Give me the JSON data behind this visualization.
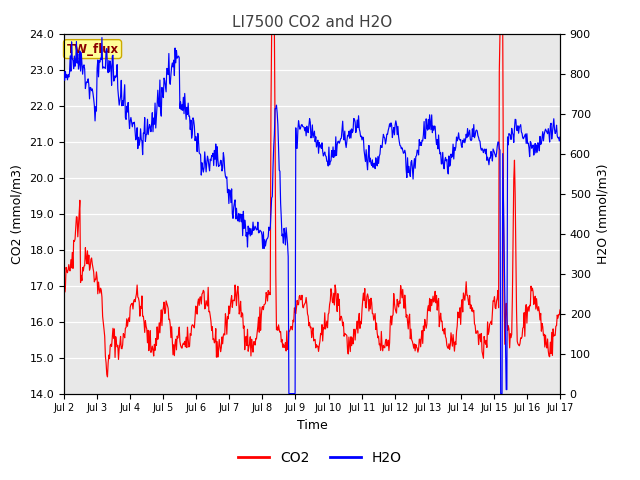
{
  "title": "LI7500 CO2 and H2O",
  "xlabel": "Time",
  "ylabel_left": "CO2 (mmol/m3)",
  "ylabel_right": "H2O (mmol/m3)",
  "co2_ylim": [
    14.0,
    24.0
  ],
  "h2o_ylim": [
    0,
    900
  ],
  "co2_yticks": [
    14.0,
    15.0,
    16.0,
    17.0,
    18.0,
    19.0,
    20.0,
    21.0,
    22.0,
    23.0,
    24.0
  ],
  "h2o_yticks": [
    0,
    100,
    200,
    300,
    400,
    500,
    600,
    700,
    800,
    900
  ],
  "xtick_labels": [
    "Jul 2",
    "Jul 3",
    "Jul 4",
    "Jul 5",
    "Jul 6",
    "Jul 7",
    "Jul 8",
    "Jul 9",
    "Jul 10",
    "Jul 11",
    "Jul 12",
    "Jul 13",
    "Jul 14",
    "Jul 15",
    "Jul 16",
    "Jul 17"
  ],
  "co2_color": "#FF0000",
  "h2o_color": "#0000FF",
  "bg_color": "#E8E8E8",
  "annotation_text": "TW_flux",
  "annotation_bg": "#FFFF99",
  "annotation_border": "#CCAA00",
  "title_color": "#404040",
  "legend_co2_label": "CO2",
  "legend_h2o_label": "H2O",
  "fig_width": 6.4,
  "fig_height": 4.8,
  "dpi": 100
}
